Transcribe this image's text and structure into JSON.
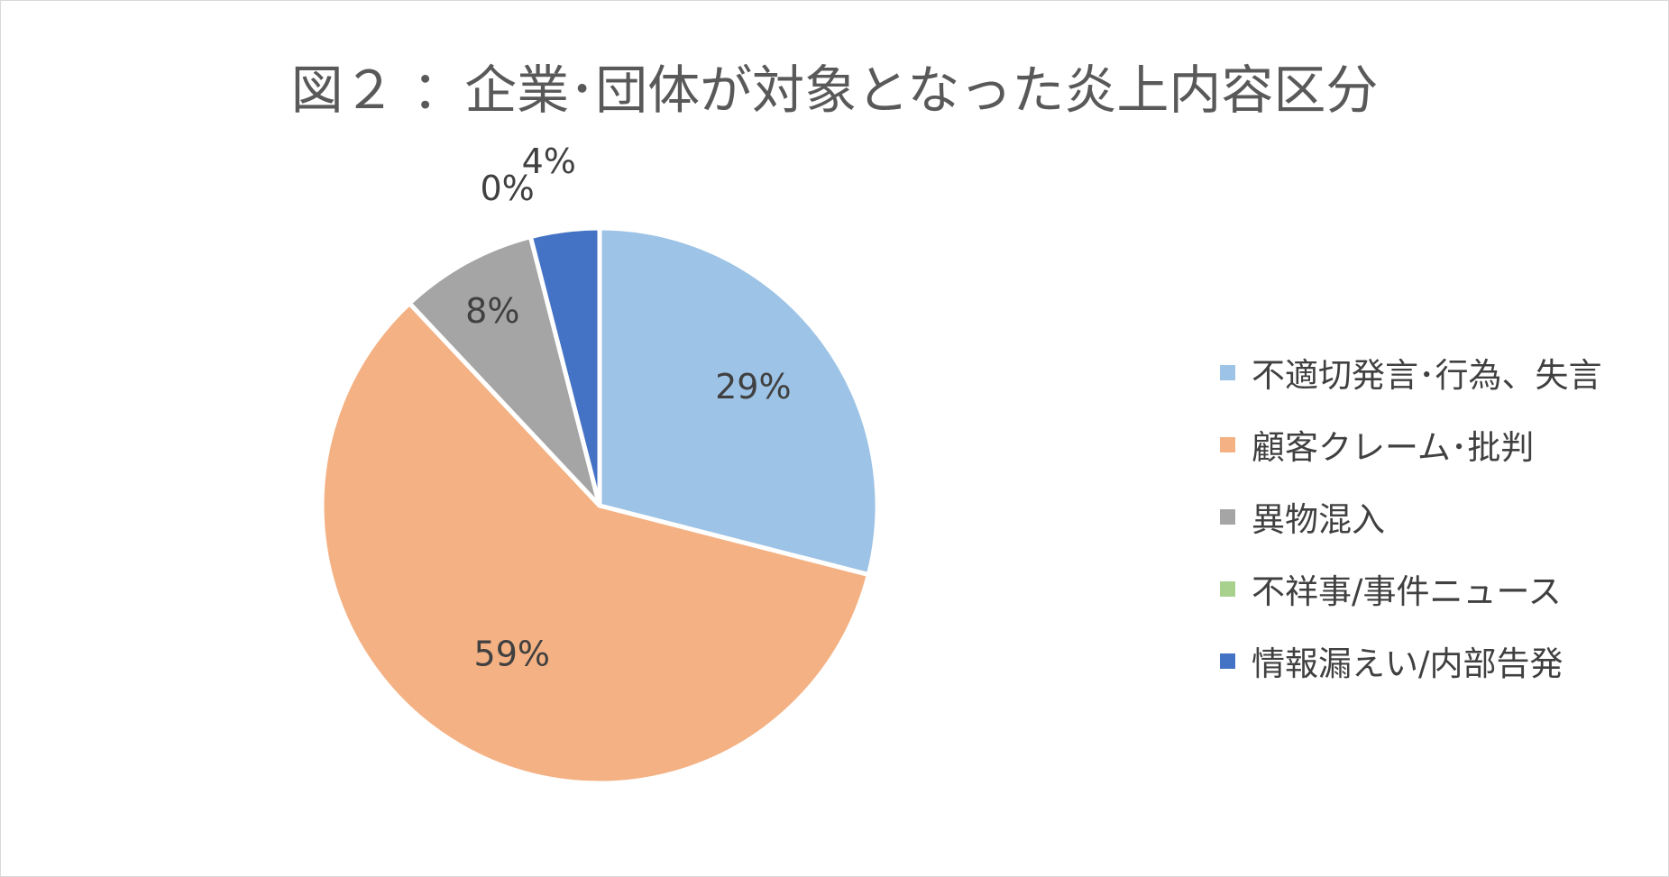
{
  "chart_data": {
    "type": "pie",
    "title": "図２ ：企業･団体が対象となった炎上内容区分",
    "legend_position": "right",
    "slices": [
      {
        "name": "不適切発言･行為、失言",
        "value": 29,
        "label": "29%",
        "color": "#9DC3E6"
      },
      {
        "name": "顧客クレーム･批判",
        "value": 59,
        "label": "59%",
        "color": "#F4B183"
      },
      {
        "name": "異物混入",
        "value": 8,
        "label": "8%",
        "color": "#A5A5A5"
      },
      {
        "name": "不祥事/事件ニュース",
        "value": 0,
        "label": "0%",
        "color": "#A9D18E"
      },
      {
        "name": "情報漏えい/内部告発",
        "value": 4,
        "label": "4%",
        "color": "#4472C4"
      }
    ]
  }
}
